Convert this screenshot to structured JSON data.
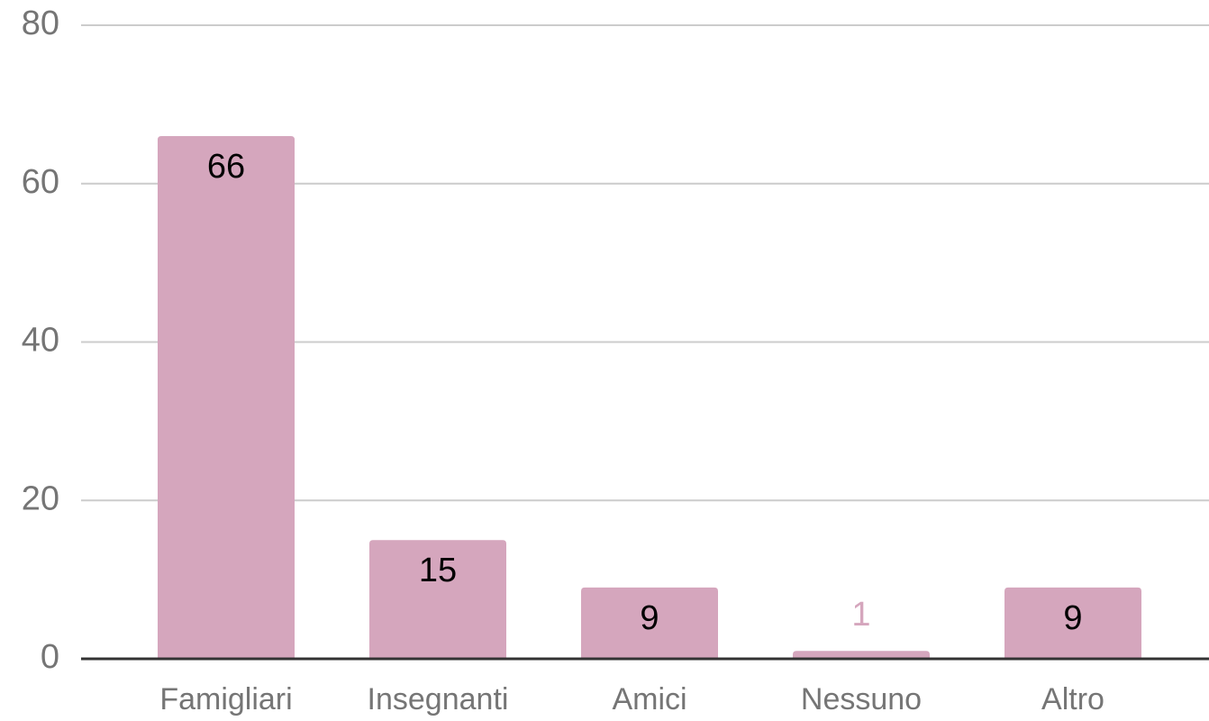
{
  "chart_data": {
    "type": "bar",
    "categories": [
      "Famigliari",
      "Insegnanti",
      "Amici",
      "Nessuno",
      "Altro"
    ],
    "values": [
      66,
      15,
      9,
      1,
      9
    ],
    "color": "#d5a6bd",
    "ylim": [
      0,
      80
    ],
    "yticks": [
      0,
      20,
      40,
      60,
      80
    ],
    "grid": true
  }
}
